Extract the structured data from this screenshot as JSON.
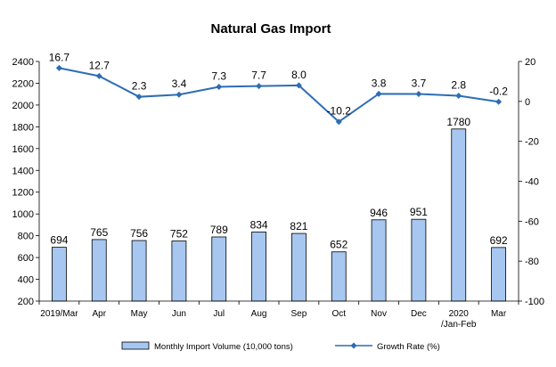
{
  "chart_data": {
    "type": "bar+line",
    "title": "Natural Gas Import",
    "categories": [
      "2019/Mar",
      "Apr",
      "May",
      "Jun",
      "Jul",
      "Aug",
      "Sep",
      "Oct",
      "Nov",
      "Dec",
      "2020\n/Jan-Feb",
      "Mar"
    ],
    "bar_series": {
      "name": "Monthly Import Volume (10,000 tons)",
      "values": [
        694,
        765,
        756,
        752,
        789,
        834,
        821,
        652,
        946,
        951,
        1780,
        692
      ],
      "color": "#A7C7F0",
      "axis": "left"
    },
    "line_series": {
      "name": "Growth Rate (%)",
      "values": [
        16.7,
        12.7,
        2.3,
        3.4,
        7.3,
        7.7,
        8.0,
        -10.2,
        3.8,
        3.7,
        2.8,
        -0.2
      ],
      "labels": [
        "16.7",
        "12.7",
        "2.3",
        "3.4",
        "7.3",
        "7.7",
        "8.0",
        "-10.2",
        "3.8",
        "3.7",
        "2.8",
        "-0.2"
      ],
      "color": "#2E6DB4",
      "axis": "right"
    },
    "y_left": {
      "min": 200,
      "max": 2400,
      "step": 200,
      "ticks": [
        "200",
        "400",
        "600",
        "800",
        "1000",
        "1200",
        "1400",
        "1600",
        "1800",
        "2000",
        "2200",
        "2400"
      ]
    },
    "y_right": {
      "min": -100,
      "max": 20,
      "step": 20,
      "ticks": [
        "-100",
        "-80",
        "-60",
        "-40",
        "-20",
        "0",
        "20"
      ]
    },
    "grid": false,
    "legend_position": "bottom"
  }
}
